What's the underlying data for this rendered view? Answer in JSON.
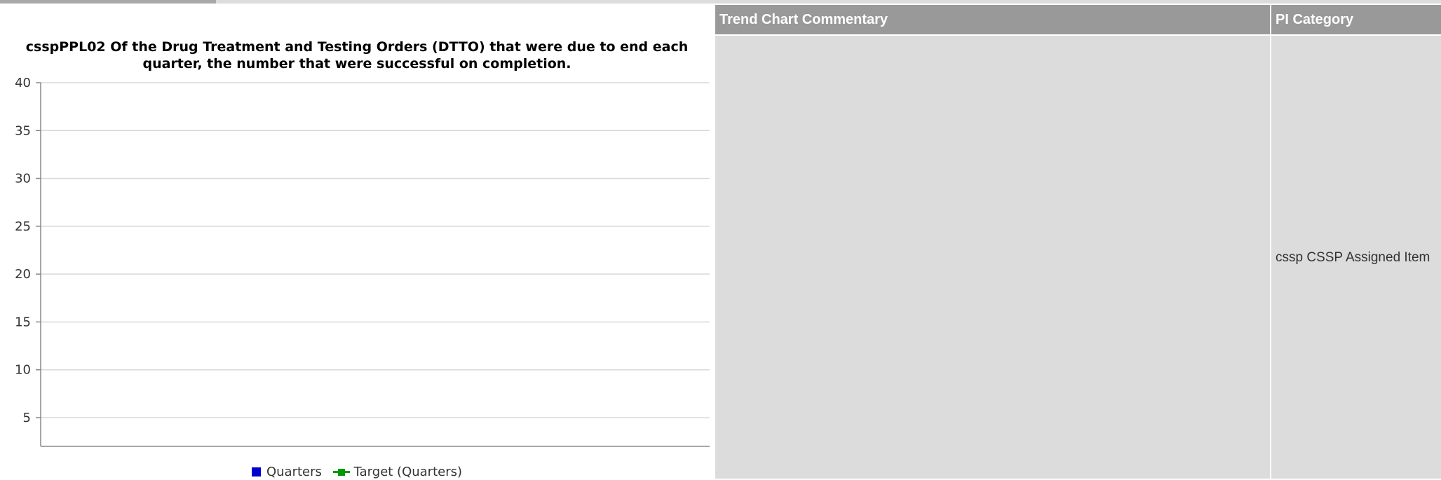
{
  "colors": {
    "series_quarters": "#0000cc",
    "series_target": "#009900",
    "header_bg": "#999999",
    "cell_bg": "#dcdcdc"
  },
  "chart_data": {
    "type": "line",
    "title_lines": [
      "csspPPL02 Of the Drug Treatment and Testing Orders (DTTO) that were due to end each",
      "quarter, the number that were successful on completion."
    ],
    "xlabel": "",
    "ylabel": "",
    "ylim": [
      2,
      40
    ],
    "yticks": [
      5,
      10,
      15,
      20,
      25,
      30,
      35,
      40
    ],
    "grid": true,
    "legend_placement": "bottom-center",
    "categories": [],
    "series": [
      {
        "name": "Quarters",
        "marker": "square",
        "values": []
      },
      {
        "name": "Target (Quarters)",
        "marker": "line-square",
        "values": []
      }
    ]
  },
  "table": {
    "headers": [
      "Trend Chart Commentary",
      "PI Category"
    ],
    "rows": [
      {
        "commentary": "",
        "pi_category": "cssp CSSP Assigned Item"
      }
    ]
  }
}
